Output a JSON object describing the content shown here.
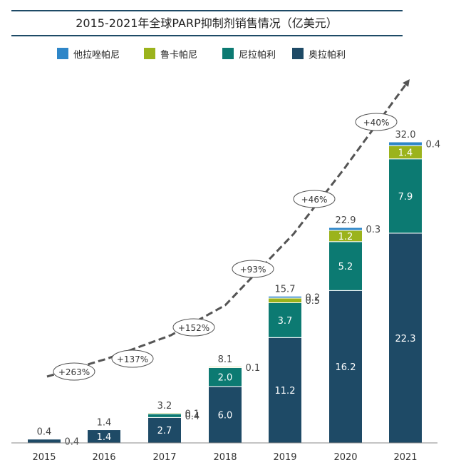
{
  "chart_data": {
    "type": "bar",
    "stacked": true,
    "title": "2015-2021年全球PARP抑制剂销售情况（亿美元）",
    "xlabel": "",
    "ylabel": "",
    "ylim": [
      0,
      32
    ],
    "grid": false,
    "legend_position": "top",
    "categories": [
      "2015",
      "2016",
      "2017",
      "2018",
      "2019",
      "2020",
      "2021"
    ],
    "totals": [
      "0.4",
      "1.4",
      "3.2",
      "8.1",
      "15.7",
      "22.9",
      "32.0"
    ],
    "growth_labels": [
      "+263%",
      "+137%",
      "+152%",
      "+93%",
      "+46%",
      "+40%"
    ],
    "series": [
      {
        "name": "奥拉帕利",
        "color": "#1e4a66",
        "values": [
          0.4,
          1.4,
          2.7,
          6.0,
          11.2,
          16.2,
          22.3
        ],
        "labels": [
          "0.4",
          "1.4",
          "2.7",
          "6.0",
          "11.2",
          "16.2",
          "22.3"
        ]
      },
      {
        "name": "尼拉帕利",
        "color": "#0c7a72",
        "values": [
          0,
          0,
          0.4,
          2.0,
          3.7,
          5.2,
          7.9
        ],
        "labels": [
          "",
          "",
          "0.4",
          "2.0",
          "3.7",
          "5.2",
          "7.9"
        ]
      },
      {
        "name": "鲁卡帕尼",
        "color": "#9bb31c",
        "values": [
          0,
          0,
          0.1,
          0.1,
          0.5,
          1.2,
          1.4
        ],
        "labels": [
          "",
          "",
          "0.1",
          "0.1",
          "0.5",
          "1.2",
          "1.4"
        ]
      },
      {
        "name": "他拉唑帕尼",
        "color": "#2e86c8",
        "values": [
          0,
          0,
          0,
          0,
          0.2,
          0.3,
          0.4
        ],
        "labels": [
          "",
          "",
          "",
          "",
          "0.2",
          "0.3",
          "0.4"
        ]
      }
    ],
    "legend_order": [
      "他拉唑帕尼",
      "鲁卡帕尼",
      "尼拉帕利",
      "奥拉帕利"
    ]
  }
}
